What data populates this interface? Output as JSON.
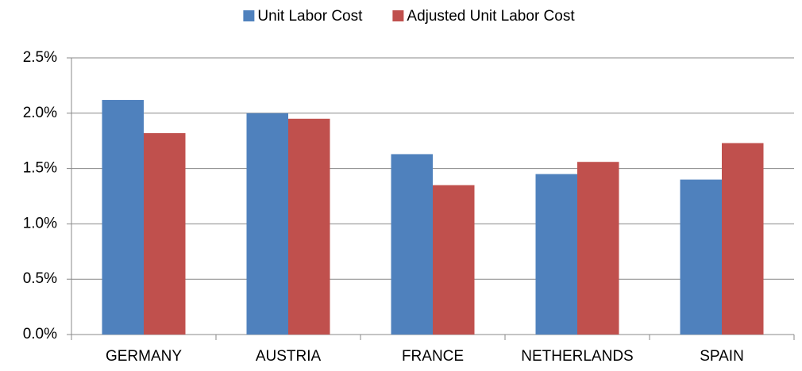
{
  "chart_data": {
    "type": "bar",
    "categories": [
      "GERMANY",
      "AUSTRIA",
      "FRANCE",
      "NETHERLANDS",
      "SPAIN"
    ],
    "series": [
      {
        "name": "Unit Labor Cost",
        "color": "#4f81bd",
        "values": [
          2.12,
          2.0,
          1.63,
          1.45,
          1.4
        ]
      },
      {
        "name": "Adjusted Unit Labor Cost",
        "color": "#c0504d",
        "values": [
          1.82,
          1.95,
          1.35,
          1.56,
          1.73
        ]
      }
    ],
    "ylim": [
      0,
      2.5
    ],
    "yticks": [
      {
        "value": 0,
        "label": "0.0%"
      },
      {
        "value": 0.5,
        "label": "0.5%"
      },
      {
        "value": 1,
        "label": "1.0%"
      },
      {
        "value": 1.5,
        "label": "1.5%"
      },
      {
        "value": 2,
        "label": "2.0%"
      },
      {
        "value": 2.5,
        "label": "2.5%"
      }
    ],
    "grid": true,
    "legend": "top"
  }
}
